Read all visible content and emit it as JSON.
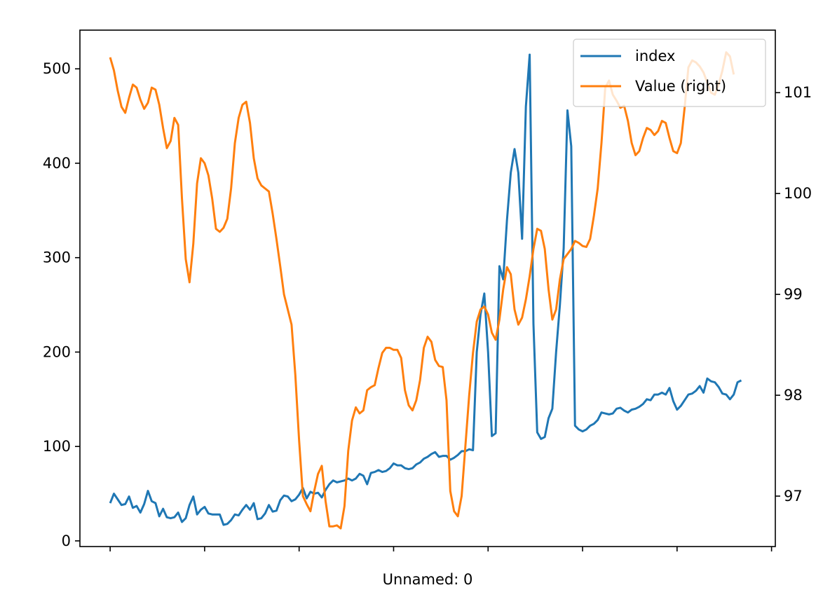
{
  "chart_data": {
    "type": "line",
    "title": "",
    "xlabel": "Unnamed: 0",
    "ylabel": "",
    "ylabel_right": "",
    "x_index_range": [
      0,
      168
    ],
    "xlim": [
      -8,
      176
    ],
    "x_tick_positions": [
      0,
      25,
      50,
      75,
      100,
      125,
      150,
      175
    ],
    "x_tick_labels": [
      "",
      "",
      "",
      "",
      "",
      "",
      "",
      ""
    ],
    "ylim": [
      -6,
      541
    ],
    "y_ticks": [
      0,
      100,
      200,
      300,
      400,
      500
    ],
    "ylim_right": [
      96.5,
      101.62
    ],
    "y_ticks_right": [
      97,
      98,
      99,
      100,
      101
    ],
    "grid": false,
    "legend_position": "top-right",
    "series": [
      {
        "name": "index",
        "axis": "left",
        "color": "#1f77b4",
        "values": [
          40.0,
          50.0,
          44.0,
          38.0,
          39.0,
          47.0,
          35.0,
          37.0,
          30.0,
          39.0,
          53.0,
          42.0,
          40.0,
          26.0,
          34.0,
          25.0,
          24.0,
          25.0,
          30.0,
          20.0,
          24.0,
          38.0,
          47.0,
          28.0,
          33.0,
          36.0,
          29.0,
          28.0,
          28.0,
          28.0,
          17.0,
          18.0,
          22.0,
          28.0,
          27.0,
          33.0,
          38.0,
          33.0,
          40.0,
          23.0,
          24.0,
          29.0,
          38.0,
          31.0,
          32.0,
          43.0,
          48.0,
          47.0,
          42.0,
          44.0,
          49.0,
          56.0,
          45.0,
          52.0,
          50.0,
          51.0,
          46.0,
          54.0,
          60.0,
          64.0,
          62.0,
          63.0,
          64.0,
          66.0,
          64.0,
          66.0,
          71.0,
          69.0,
          60.0,
          72.0,
          73.0,
          75.0,
          73.0,
          74.0,
          77.0,
          82.0,
          80.0,
          80.0,
          77.0,
          76.0,
          77.0,
          81.0,
          83.0,
          87.0,
          89.0,
          92.0,
          94.0,
          89.0,
          90.0,
          90.0,
          86.0,
          88.0,
          91.0,
          95.0,
          95.0,
          97.0,
          96.0,
          200.0,
          240.0,
          262.0,
          200.0,
          111.0,
          114.0,
          291.0,
          277.0,
          340.0,
          390.0,
          415.0,
          390.0,
          320.0,
          460.0,
          515.0,
          230.0,
          115.0,
          108.0,
          110.0,
          130.0,
          140.0,
          200.0,
          250.0,
          310.0,
          456.0,
          418.0,
          122.0,
          118.0,
          116.0,
          118.0,
          122.0,
          124.0,
          128.0,
          136.0,
          135.0,
          134.0,
          135.0,
          140.0,
          141.0,
          138.0,
          136.0,
          139.0,
          140.0,
          142.0,
          145.0,
          150.0,
          149.0,
          155.0,
          155.0,
          157.0,
          155.0,
          162.0,
          148.0,
          139.0,
          143.0,
          149.0,
          155.0,
          156.0,
          159.0,
          164.0,
          157.0,
          172.0,
          169.0,
          168.0,
          163.0,
          156.0,
          155.0,
          150.0,
          155.0,
          168.0,
          170.0
        ]
      },
      {
        "name": "Value (right)",
        "axis": "right",
        "color": "#ff7f0e",
        "values": [
          101.35,
          101.22,
          101.02,
          100.86,
          100.8,
          100.95,
          101.08,
          101.05,
          100.93,
          100.84,
          100.9,
          101.05,
          101.03,
          100.88,
          100.65,
          100.45,
          100.52,
          100.75,
          100.68,
          99.95,
          99.35,
          99.12,
          99.5,
          100.1,
          100.35,
          100.3,
          100.18,
          99.95,
          99.65,
          99.62,
          99.66,
          99.75,
          100.05,
          100.5,
          100.75,
          100.88,
          100.91,
          100.7,
          100.35,
          100.15,
          100.08,
          100.05,
          100.02,
          99.8,
          99.55,
          99.28,
          99.0,
          98.85,
          98.7,
          98.2,
          97.55,
          97.0,
          96.92,
          96.85,
          97.05,
          97.22,
          97.3,
          96.95,
          96.7,
          96.7,
          96.71,
          96.68,
          96.9,
          97.45,
          97.75,
          97.88,
          97.82,
          97.85,
          98.05,
          98.08,
          98.1,
          98.27,
          98.42,
          98.47,
          98.47,
          98.45,
          98.45,
          98.37,
          98.05,
          97.9,
          97.85,
          97.95,
          98.15,
          98.47,
          98.58,
          98.53,
          98.35,
          98.29,
          98.28,
          97.95,
          97.05,
          96.85,
          96.8,
          97.0,
          97.5,
          98.0,
          98.42,
          98.73,
          98.85,
          98.88,
          98.8,
          98.62,
          98.55,
          98.75,
          99.05,
          99.27,
          99.2,
          98.85,
          98.7,
          98.77,
          98.95,
          99.18,
          99.45,
          99.65,
          99.63,
          99.45,
          99.05,
          98.75,
          98.85,
          99.15,
          99.35,
          99.4,
          99.45,
          99.53,
          99.51,
          99.48,
          99.47,
          99.55,
          99.78,
          100.05,
          100.5,
          101.05,
          101.12,
          100.98,
          100.92,
          100.85,
          100.87,
          100.72,
          100.5,
          100.38,
          100.42,
          100.55,
          100.65,
          100.63,
          100.58,
          100.62,
          100.72,
          100.7,
          100.55,
          100.42,
          100.4,
          100.5,
          100.85,
          101.25,
          101.32,
          101.3,
          101.26,
          101.2,
          101.1,
          101.0,
          100.98,
          101.08,
          101.22,
          101.4,
          101.36,
          101.18
        ]
      }
    ]
  }
}
